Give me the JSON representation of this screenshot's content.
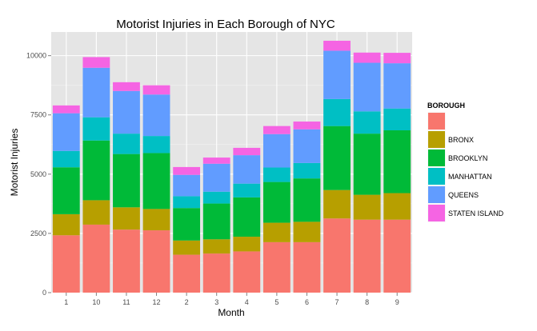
{
  "chart_data": {
    "type": "bar",
    "stacked": true,
    "title": "Motorist Injuries in Each Borough of NYC",
    "xlabel": "Month",
    "ylabel": "Motorist Injuries",
    "categories": [
      "1",
      "10",
      "11",
      "12",
      "2",
      "3",
      "4",
      "5",
      "6",
      "7",
      "8",
      "9"
    ],
    "ylim": [
      0,
      11000
    ],
    "yticks": [
      0,
      2500,
      5000,
      7500,
      10000
    ],
    "ytick_labels": [
      "0",
      "2500",
      "5000",
      "7500",
      "10000"
    ],
    "grid": true,
    "legend": {
      "title": "BOROUGH",
      "position": "right"
    },
    "series": [
      {
        "name": "",
        "color": "#F8766D",
        "values": [
          2420,
          2870,
          2660,
          2630,
          1600,
          1650,
          1740,
          2130,
          2130,
          3130,
          3080,
          3080
        ]
      },
      {
        "name": "BRONX",
        "color": "#B79F00",
        "values": [
          890,
          1030,
          940,
          900,
          600,
          600,
          620,
          820,
          860,
          1200,
          1050,
          1120
        ]
      },
      {
        "name": "BROOKLYN",
        "color": "#00BA38",
        "values": [
          1980,
          2520,
          2250,
          2360,
          1370,
          1510,
          1660,
          1720,
          1830,
          2700,
          2580,
          2650
        ]
      },
      {
        "name": "MANHATTAN",
        "color": "#00BFC4",
        "values": [
          690,
          980,
          860,
          720,
          500,
          500,
          580,
          610,
          650,
          1140,
          940,
          920
        ]
      },
      {
        "name": "QUEENS",
        "color": "#619CFF",
        "values": [
          1590,
          2090,
          1800,
          1750,
          900,
          1180,
          1200,
          1410,
          1420,
          2040,
          2050,
          1910
        ]
      },
      {
        "name": "STATEN ISLAND",
        "color": "#F564E3",
        "values": [
          330,
          450,
          370,
          390,
          330,
          260,
          310,
          340,
          330,
          420,
          430,
          440
        ]
      }
    ]
  }
}
